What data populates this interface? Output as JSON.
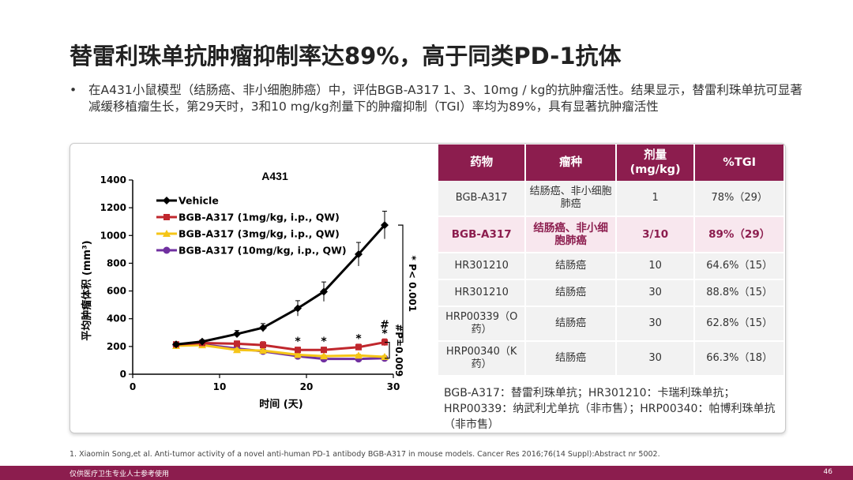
{
  "title": "替雷利珠单抗肿瘤抑制率达89%，高于同类PD-1抗体",
  "bullet": "在A431小鼠模型（结肠癌、非小细胞肺癌）中，评估BGB-A317 1、3、10mg / kg的抗肿瘤活性。结果显示，替雷利珠单抗可显著减缓移植瘤生长，第29天时，3和10 mg/kg剂量下的肿瘤抑制（TGI）率均为89%，具有显著抗肿瘤活性",
  "table": {
    "headers": [
      "药物",
      "瘤种",
      "剂量\n(mg/kg)",
      "%TGI"
    ],
    "rows": [
      {
        "drug": "BGB-A317",
        "tumor": "结肠癌、非小细胞肺癌",
        "dose": "1",
        "tgi": "78%（29）",
        "highlight": false
      },
      {
        "drug": "BGB-A317",
        "tumor": "结肠癌、非小细胞肺癌",
        "dose": "3/10",
        "tgi": "89%（29）",
        "highlight": true
      },
      {
        "drug": "HR301210",
        "tumor": "结肠癌",
        "dose": "10",
        "tgi": "64.6%（15）",
        "highlight": false
      },
      {
        "drug": "HR301210",
        "tumor": "结肠癌",
        "dose": "30",
        "tgi": "88.8%（15）",
        "highlight": false
      },
      {
        "drug": "HRP00339（O药）",
        "tumor": "结肠癌",
        "dose": "30",
        "tgi": "62.8%（15）",
        "highlight": false
      },
      {
        "drug": "HRP00340（K药）",
        "tumor": "结肠癌",
        "dose": "30",
        "tgi": "66.3%（18）",
        "highlight": false
      }
    ]
  },
  "note": "BGB-A317：替雷利珠单抗；HR301210：卡瑞利珠单抗；HRP00339：纳武利尤单抗（非市售）；HRP00340：帕博利珠单抗（非市售）",
  "reference": "1.   Xiaomin Song,et al. Anti-tumor activity of a novel anti-human PD-1 antibody BGB-A317 in mouse models. Cancer Res 2016;76(14 Suppl):Abstract nr 5002.",
  "footer": {
    "left": "仅供医疗卫生专业人士参考使用",
    "page": "46"
  },
  "chart_data": {
    "type": "line",
    "title": "A431",
    "xlabel": "时间 (天)",
    "ylabel": "平均肿瘤体积 (mm³)",
    "xlim": [
      0,
      30
    ],
    "ylim": [
      0,
      1400
    ],
    "xticks": [
      0,
      10,
      20,
      30
    ],
    "yticks": [
      0,
      200,
      400,
      600,
      800,
      1000,
      1200,
      1400
    ],
    "legend_position": "top-left",
    "series": [
      {
        "name": "Vehicle",
        "color": "#000000",
        "marker": "diamond",
        "x": [
          5,
          8,
          12,
          15,
          19,
          22,
          26,
          29
        ],
        "y": [
          215,
          235,
          290,
          335,
          475,
          595,
          865,
          1075
        ],
        "err": [
          10,
          12,
          25,
          30,
          55,
          70,
          85,
          100
        ]
      },
      {
        "name": "BGB-A317 (1mg/kg, i.p., QW)",
        "color": "#c0272d",
        "marker": "square",
        "x": [
          5,
          8,
          12,
          15,
          19,
          22,
          26,
          29
        ],
        "y": [
          215,
          225,
          220,
          210,
          175,
          175,
          195,
          230
        ],
        "err": [
          10,
          10,
          20,
          25,
          20,
          20,
          22,
          25
        ]
      },
      {
        "name": "BGB-A317 (3mg/kg, i.p., QW)",
        "color": "#f5c518",
        "marker": "triangle",
        "x": [
          5,
          8,
          12,
          15,
          19,
          22,
          26,
          29
        ],
        "y": [
          205,
          210,
          175,
          170,
          140,
          130,
          135,
          125
        ],
        "err": [
          8,
          10,
          12,
          15,
          12,
          10,
          10,
          10
        ]
      },
      {
        "name": "BGB-A317 (10mg/kg, i.p., QW)",
        "color": "#7030a0",
        "marker": "circle",
        "x": [
          5,
          8,
          12,
          15,
          19,
          22,
          26,
          29
        ],
        "y": [
          210,
          215,
          185,
          165,
          130,
          110,
          110,
          115
        ],
        "err": [
          8,
          10,
          12,
          12,
          10,
          8,
          8,
          8
        ]
      }
    ],
    "annotations": [
      {
        "text": "*",
        "x": 19,
        "y": 210
      },
      {
        "text": "*",
        "x": 22,
        "y": 210
      },
      {
        "text": "*",
        "x": 26,
        "y": 230
      },
      {
        "text": "*",
        "x": 29,
        "y": 268
      },
      {
        "text": "#",
        "x": 29,
        "y": 330
      }
    ],
    "brackets": [
      {
        "label": "* P< 0.001",
        "y_from": 1075,
        "y_to": 230
      },
      {
        "label": "#P=0.009",
        "y_from": 230,
        "y_to": 115
      }
    ]
  }
}
